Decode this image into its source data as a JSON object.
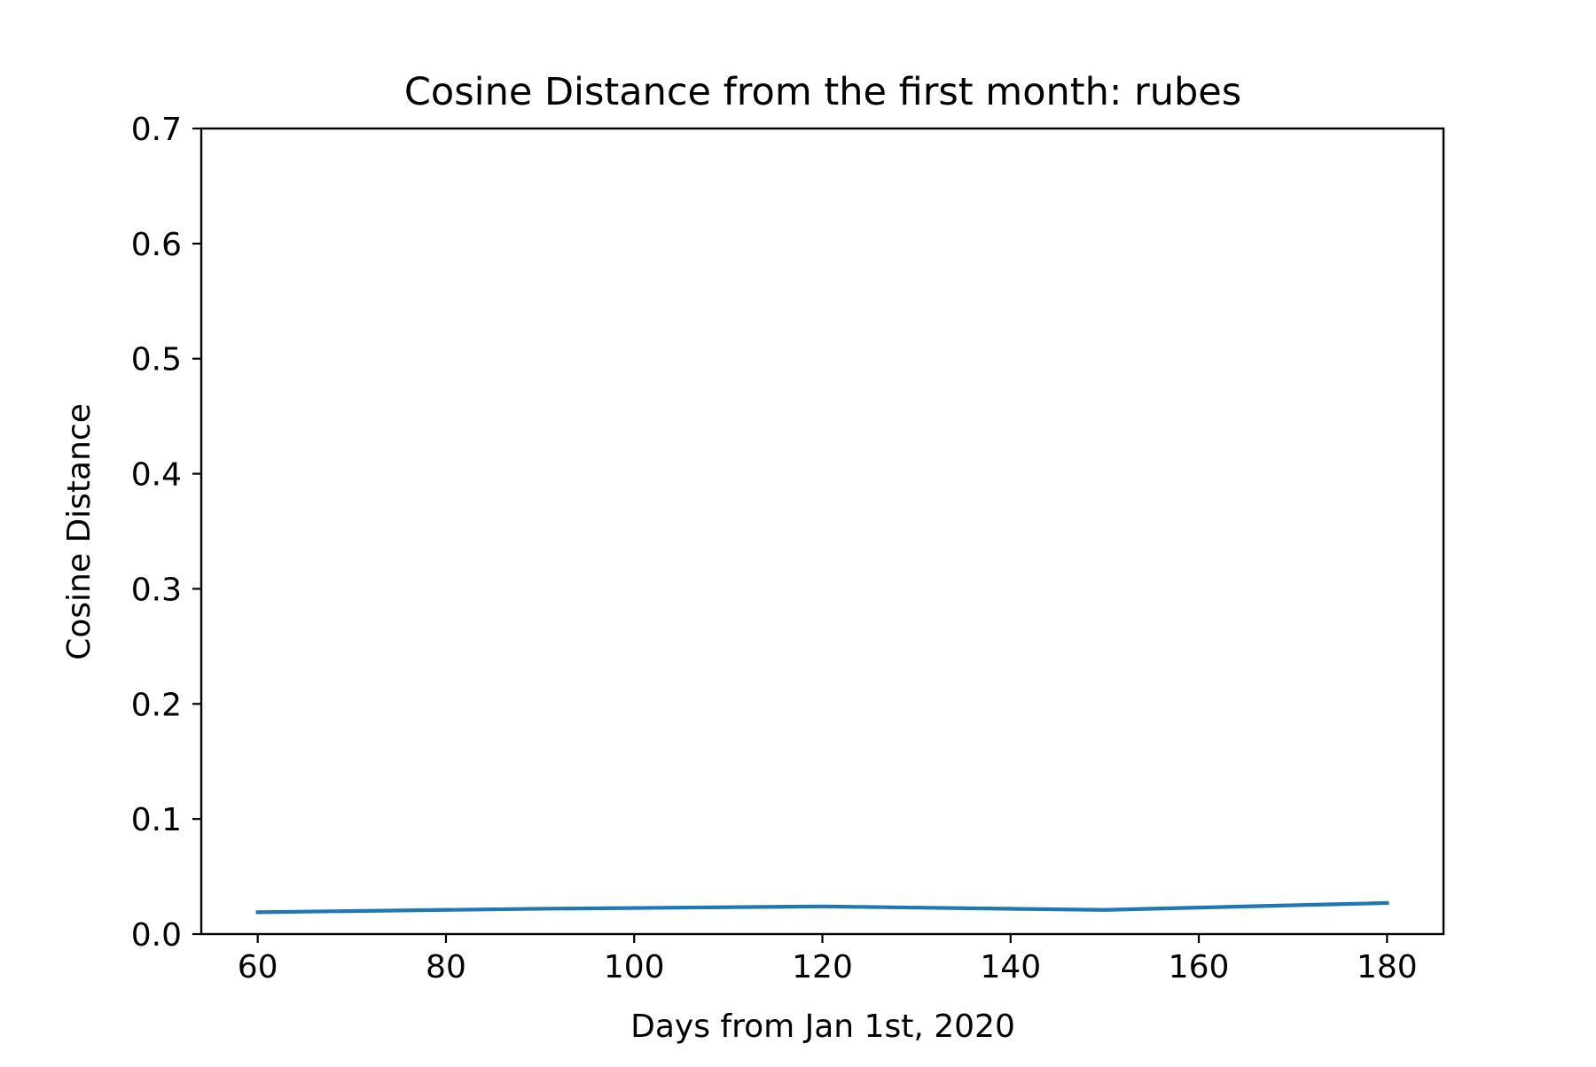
{
  "chart_data": {
    "type": "line",
    "title": "Cosine Distance from the first month: rubes",
    "xlabel": "Days from Jan 1st, 2020",
    "ylabel": "Cosine Distance",
    "xlim": [
      54,
      186
    ],
    "ylim": [
      0.0,
      0.7
    ],
    "x_ticks": [
      60,
      80,
      100,
      120,
      140,
      160,
      180
    ],
    "x_tick_labels": [
      "60",
      "80",
      "100",
      "120",
      "140",
      "160",
      "180"
    ],
    "y_ticks": [
      0.0,
      0.1,
      0.2,
      0.3,
      0.4,
      0.5,
      0.6,
      0.7
    ],
    "y_tick_labels": [
      "0.0",
      "0.1",
      "0.2",
      "0.3",
      "0.4",
      "0.5",
      "0.6",
      "0.7"
    ],
    "grid": false,
    "series": [
      {
        "color": "#1f77b4",
        "x": [
          60,
          90,
          120,
          150,
          180
        ],
        "y": [
          0.019,
          0.022,
          0.024,
          0.021,
          0.027
        ]
      }
    ]
  }
}
